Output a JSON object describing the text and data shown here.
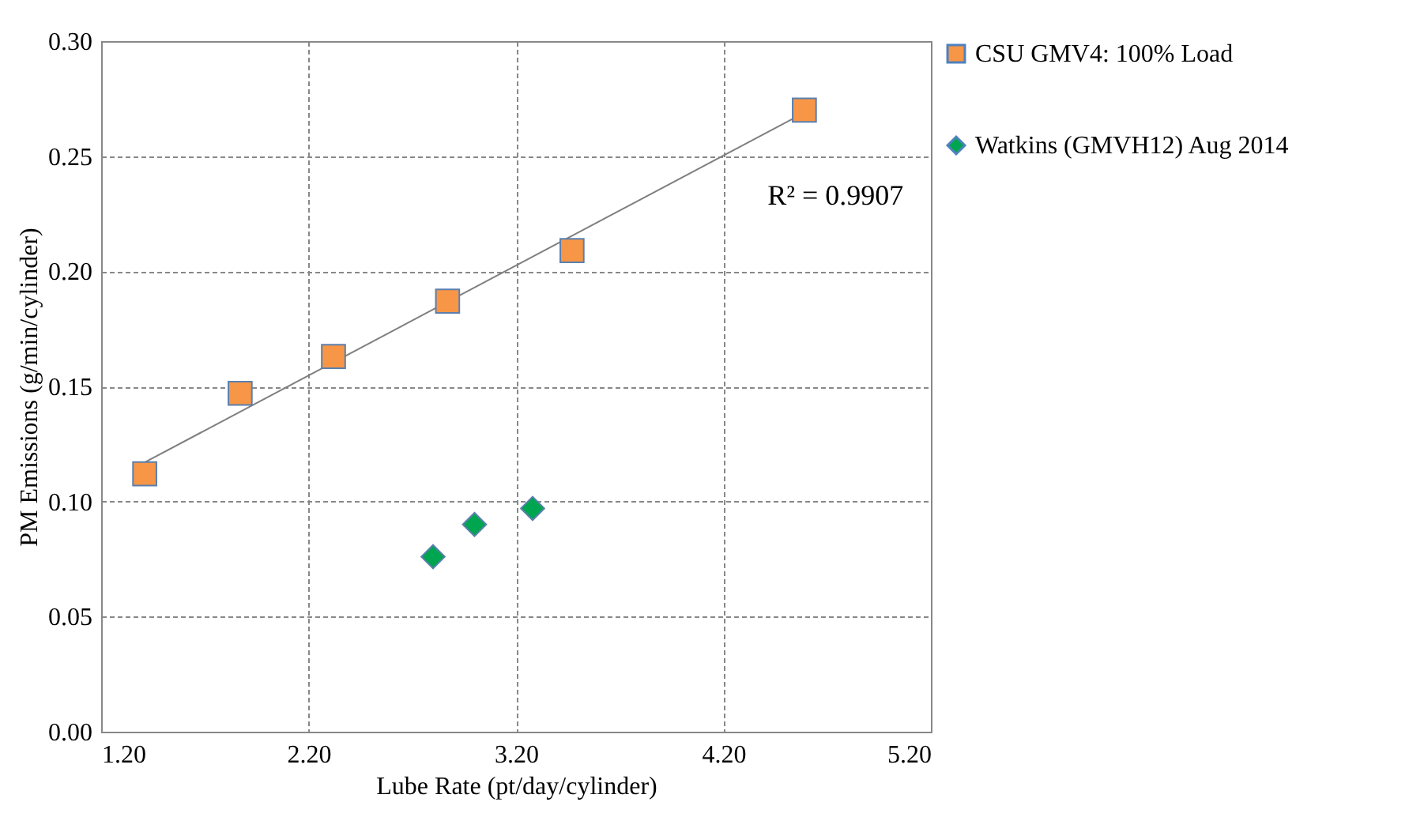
{
  "chart_data": {
    "type": "scatter",
    "xlabel": "Lube Rate (pt/day/cylinder)",
    "ylabel": "PM Emissions (g/min/cylinder)",
    "xlim": [
      1.2,
      5.2
    ],
    "xticks": [
      {
        "value": 1.2,
        "label": "1.20"
      },
      {
        "value": 2.2,
        "label": "2.20"
      },
      {
        "value": 3.2,
        "label": "3.20"
      },
      {
        "value": 4.2,
        "label": "4.20"
      },
      {
        "value": 5.2,
        "label": "5.20"
      }
    ],
    "ylim": [
      0,
      0.3
    ],
    "yticks": [
      {
        "value": 0,
        "label": "0.00"
      },
      {
        "value": 0.05,
        "label": "0.05"
      },
      {
        "value": 0.1,
        "label": "0.10"
      },
      {
        "value": 0.15,
        "label": "0.15"
      },
      {
        "value": 0.2,
        "label": "0.20"
      },
      {
        "value": 0.25,
        "label": "0.25"
      },
      {
        "value": 0.3,
        "label": "0.30"
      }
    ],
    "grid": true,
    "legend": "right",
    "series": [
      {
        "name": "CSU GMV4: 100% Load",
        "color": "#f79646",
        "marker": "square",
        "x": [
          1.41,
          1.87,
          2.32,
          2.87,
          3.47,
          4.59
        ],
        "values": [
          0.112,
          0.147,
          0.163,
          0.187,
          0.209,
          0.27
        ]
      },
      {
        "name": "Watkins (GMVH12) Aug 2014",
        "color": "#00a550",
        "marker": "diamond",
        "x": [
          2.8,
          3.0,
          3.28
        ],
        "values": [
          0.076,
          0.09,
          0.097
        ]
      },
      {
        "type": "line",
        "color": "#7f7f7f",
        "x": [
          1.41,
          4.55
        ],
        "values": [
          0.117,
          0.267
        ]
      }
    ],
    "annotations": [
      "R² = 0.9907"
    ]
  }
}
